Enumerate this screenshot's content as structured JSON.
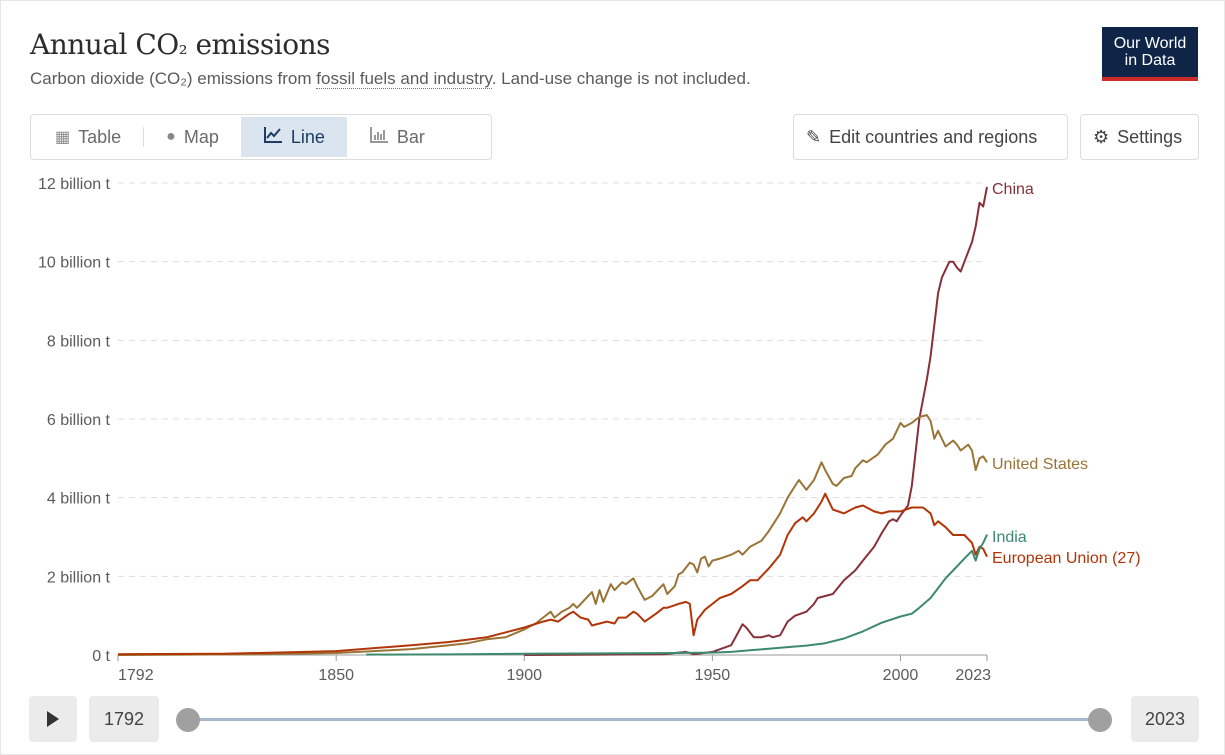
{
  "header": {
    "title_pre": "Annual CO",
    "title_sub": "₂",
    "title_post": " emissions",
    "subtitle_pre": "Carbon dioxide (CO",
    "subtitle_sub": "₂",
    "subtitle_mid": ") emissions from ",
    "subtitle_link": "fossil fuels and industry",
    "subtitle_post": ". Land-use change is not included.",
    "logo_line1": "Our World",
    "logo_line2": "in Data"
  },
  "tabs": [
    {
      "label": "Table",
      "icon": "table-icon"
    },
    {
      "label": "Map",
      "icon": "globe-icon"
    },
    {
      "label": "Line",
      "icon": "line-chart-icon",
      "active": true
    },
    {
      "label": "Bar",
      "icon": "bar-chart-icon"
    }
  ],
  "buttons": {
    "edit": "Edit countries and regions",
    "settings": "Settings"
  },
  "timeline": {
    "start": "1792",
    "end": "2023"
  },
  "colors": {
    "China": "#883039",
    "United States": "#9a7437",
    "India": "#3c8a6e",
    "European Union (27)": "#b13507",
    "accent": "#1d3d63"
  },
  "chart_data": {
    "type": "line",
    "title": "Annual CO₂ emissions",
    "ylabel": "",
    "xlabel": "",
    "ylim": [
      0,
      12
    ],
    "xlim": [
      1792,
      2023
    ],
    "y_ticks": [
      "0 t",
      "2 billion t",
      "4 billion t",
      "6 billion t",
      "8 billion t",
      "10 billion t",
      "12 billion t"
    ],
    "y_tick_values": [
      0,
      2,
      4,
      6,
      8,
      10,
      12
    ],
    "x_ticks": [
      "1792",
      "1850",
      "1900",
      "1950",
      "2000",
      "2023"
    ],
    "x_tick_values": [
      1792,
      1850,
      1900,
      1950,
      2000,
      2023
    ],
    "unit": "billion t",
    "grid": "horizontal dashed",
    "legend": "inline-right",
    "series": [
      {
        "name": "China",
        "x": [
          1900,
          1920,
          1937,
          1943,
          1945,
          1950,
          1955,
          1957,
          1958,
          1959,
          1961,
          1963,
          1965,
          1966,
          1968,
          1970,
          1972,
          1975,
          1977,
          1978,
          1980,
          1982,
          1985,
          1988,
          1990,
          1993,
          1995,
          1997,
          1998,
          1999,
          2000,
          2002,
          2003,
          2005,
          2007,
          2008,
          2010,
          2011,
          2013,
          2014,
          2015,
          2016,
          2017,
          2019,
          2020,
          2021,
          2022,
          2023
        ],
        "y": [
          0.0,
          0.01,
          0.02,
          0.08,
          0.02,
          0.08,
          0.25,
          0.6,
          0.78,
          0.7,
          0.45,
          0.45,
          0.5,
          0.45,
          0.5,
          0.85,
          1.0,
          1.1,
          1.3,
          1.45,
          1.5,
          1.55,
          1.9,
          2.15,
          2.4,
          2.75,
          3.1,
          3.4,
          3.45,
          3.4,
          3.55,
          3.8,
          4.3,
          6.0,
          7.0,
          7.6,
          9.2,
          9.6,
          10.0,
          10.0,
          9.85,
          9.75,
          10.0,
          10.5,
          10.9,
          11.5,
          11.4,
          11.9
        ]
      },
      {
        "name": "United States",
        "x": [
          1792,
          1810,
          1830,
          1850,
          1860,
          1870,
          1880,
          1885,
          1890,
          1895,
          1900,
          1903,
          1905,
          1907,
          1908,
          1910,
          1912,
          1913,
          1914,
          1916,
          1917,
          1918,
          1919,
          1920,
          1921,
          1923,
          1924,
          1926,
          1927,
          1929,
          1930,
          1932,
          1934,
          1936,
          1937,
          1938,
          1940,
          1941,
          1942,
          1944,
          1945,
          1946,
          1947,
          1948,
          1949,
          1950,
          1952,
          1955,
          1957,
          1958,
          1960,
          1963,
          1965,
          1968,
          1970,
          1972,
          1973,
          1975,
          1977,
          1979,
          1980,
          1982,
          1983,
          1985,
          1987,
          1988,
          1990,
          1991,
          1994,
          1996,
          1998,
          2000,
          2001,
          2003,
          2005,
          2007,
          2008,
          2009,
          2010,
          2012,
          2014,
          2015,
          2016,
          2018,
          2019,
          2020,
          2021,
          2022,
          2023
        ],
        "y": [
          0.0,
          0.01,
          0.02,
          0.05,
          0.1,
          0.15,
          0.25,
          0.3,
          0.4,
          0.45,
          0.65,
          0.8,
          0.95,
          1.1,
          0.95,
          1.1,
          1.2,
          1.3,
          1.2,
          1.4,
          1.5,
          1.6,
          1.3,
          1.65,
          1.35,
          1.8,
          1.65,
          1.85,
          1.8,
          1.95,
          1.75,
          1.4,
          1.5,
          1.7,
          1.8,
          1.55,
          1.75,
          2.05,
          2.1,
          2.35,
          2.3,
          2.1,
          2.45,
          2.5,
          2.25,
          2.4,
          2.45,
          2.55,
          2.65,
          2.55,
          2.75,
          2.9,
          3.15,
          3.6,
          4.0,
          4.3,
          4.45,
          4.2,
          4.45,
          4.9,
          4.7,
          4.35,
          4.3,
          4.5,
          4.55,
          4.75,
          4.95,
          4.9,
          5.1,
          5.35,
          5.5,
          5.9,
          5.8,
          5.9,
          6.05,
          6.1,
          5.95,
          5.5,
          5.7,
          5.3,
          5.45,
          5.35,
          5.2,
          5.35,
          5.2,
          4.7,
          5.0,
          5.05,
          4.9
        ]
      },
      {
        "name": "European Union (27)",
        "x": [
          1792,
          1820,
          1850,
          1870,
          1880,
          1890,
          1900,
          1905,
          1907,
          1909,
          1912,
          1913,
          1915,
          1917,
          1918,
          1920,
          1922,
          1924,
          1925,
          1927,
          1929,
          1930,
          1932,
          1935,
          1937,
          1938,
          1941,
          1943,
          1944,
          1945,
          1946,
          1948,
          1950,
          1952,
          1955,
          1958,
          1960,
          1962,
          1965,
          1968,
          1970,
          1972,
          1974,
          1975,
          1977,
          1979,
          1980,
          1982,
          1985,
          1988,
          1990,
          1993,
          1995,
          1997,
          2000,
          2003,
          2006,
          2008,
          2009,
          2010,
          2012,
          2014,
          2017,
          2019,
          2020,
          2021,
          2022,
          2023
        ],
        "y": [
          0.02,
          0.03,
          0.1,
          0.25,
          0.33,
          0.45,
          0.7,
          0.85,
          0.9,
          0.85,
          1.05,
          1.1,
          0.95,
          0.9,
          0.75,
          0.8,
          0.85,
          0.8,
          0.95,
          0.95,
          1.1,
          1.05,
          0.85,
          1.05,
          1.2,
          1.2,
          1.3,
          1.35,
          1.3,
          0.5,
          0.9,
          1.15,
          1.3,
          1.45,
          1.55,
          1.75,
          1.9,
          1.9,
          2.2,
          2.55,
          3.05,
          3.35,
          3.5,
          3.4,
          3.6,
          3.9,
          4.1,
          3.7,
          3.6,
          3.75,
          3.8,
          3.65,
          3.6,
          3.65,
          3.65,
          3.75,
          3.75,
          3.6,
          3.3,
          3.4,
          3.25,
          3.05,
          3.05,
          2.85,
          2.55,
          2.75,
          2.7,
          2.5
        ]
      },
      {
        "name": "India",
        "x": [
          1858,
          1880,
          1900,
          1920,
          1940,
          1950,
          1955,
          1960,
          1965,
          1970,
          1975,
          1980,
          1985,
          1990,
          1995,
          2000,
          2003,
          2005,
          2008,
          2010,
          2012,
          2015,
          2017,
          2019,
          2020,
          2021,
          2022,
          2023
        ],
        "y": [
          0.01,
          0.015,
          0.03,
          0.04,
          0.05,
          0.06,
          0.08,
          0.12,
          0.16,
          0.2,
          0.24,
          0.3,
          0.42,
          0.6,
          0.82,
          0.98,
          1.05,
          1.2,
          1.45,
          1.7,
          1.95,
          2.25,
          2.45,
          2.65,
          2.4,
          2.7,
          2.85,
          3.06
        ]
      }
    ]
  }
}
